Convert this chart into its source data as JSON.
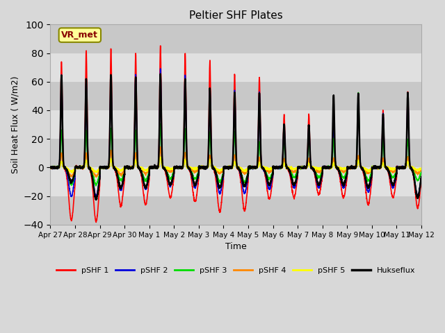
{
  "title": "Peltier SHF Plates",
  "xlabel": "Time",
  "ylabel": "Soil Heat Flux ( W/m2)",
  "ylim": [
    -40,
    100
  ],
  "xlim": [
    0,
    15
  ],
  "xtick_labels": [
    "Apr 27",
    "Apr 28",
    "Apr 29",
    "Apr 30",
    "May 1",
    "May 2",
    "May 3",
    "May 4",
    "May 5",
    "May 6",
    "May 7",
    "May 8",
    "May 9",
    "May 10",
    "May 11",
    "May 12"
  ],
  "ytick_values": [
    -40,
    -20,
    0,
    20,
    40,
    60,
    80,
    100
  ],
  "background_color": "#d8d8d8",
  "plot_bg_color": "#d8d8d8",
  "legend_entries": [
    "pSHF 1",
    "pSHF 2",
    "pSHF 3",
    "pSHF 4",
    "pSHF 5",
    "Hukseflux"
  ],
  "colors": {
    "pSHF1": "#ff0000",
    "pSHF2": "#0000dd",
    "pSHF3": "#00dd00",
    "pSHF4": "#ff8800",
    "pSHF5": "#ffff00",
    "Hukseflux": "#000000"
  },
  "annotation_text": "VR_met",
  "annotation_box_color": "#ffff99",
  "annotation_border_color": "#888800",
  "num_days": 15,
  "peaks_pSHF1": [
    74,
    82,
    83,
    80,
    85,
    80,
    75,
    65,
    63,
    37,
    37,
    38,
    50,
    40,
    53
  ],
  "peaks_pSHF2": [
    65,
    60,
    63,
    65,
    69,
    65,
    55,
    54,
    53,
    30,
    29,
    30,
    51,
    38,
    52
  ],
  "peaks_pSHF3": [
    26,
    26,
    27,
    26,
    30,
    27,
    25,
    25,
    18,
    19,
    20,
    20,
    52,
    19,
    20
  ],
  "peaks_pSHF4": [
    10,
    10,
    12,
    10,
    14,
    10,
    9,
    9,
    7,
    6,
    6,
    6,
    8,
    6,
    7
  ],
  "peaks_pSHF5": [
    4,
    5,
    6,
    5,
    7,
    5,
    5,
    4,
    3,
    3,
    3,
    3,
    5,
    3,
    4
  ],
  "peaks_Hukseflux": [
    65,
    62,
    65,
    63,
    65,
    62,
    55,
    52,
    52,
    30,
    30,
    50,
    52,
    37,
    52
  ],
  "troughs_pSHF1": [
    -37,
    -38,
    -27,
    -26,
    -21,
    -24,
    -31,
    -30,
    -22,
    -21,
    -19,
    -21,
    -26,
    -21,
    -28
  ],
  "troughs_pSHF2": [
    -20,
    -20,
    -16,
    -15,
    -13,
    -14,
    -18,
    -18,
    -15,
    -14,
    -14,
    -14,
    -17,
    -14,
    -20
  ],
  "troughs_pSHF3": [
    -12,
    -12,
    -9,
    -9,
    -8,
    -8,
    -10,
    -10,
    -8,
    -7,
    -7,
    -7,
    -9,
    -7,
    -9
  ],
  "troughs_pSHF4": [
    -6,
    -6,
    -5,
    -4,
    -3,
    -3,
    -4,
    -4,
    -3,
    -3,
    -3,
    -3,
    -4,
    -3,
    -4
  ],
  "troughs_pSHF5": [
    -3,
    -3,
    -2,
    -2,
    -1,
    -1,
    -2,
    -2,
    -1,
    -1,
    -1,
    -1,
    -2,
    -1,
    -2
  ],
  "troughs_Hukseflux": [
    -10,
    -22,
    -14,
    -14,
    -12,
    -12,
    -14,
    -13,
    -12,
    -12,
    -12,
    -12,
    -14,
    -12,
    -21
  ],
  "band_colors": [
    "#c8c8c8",
    "#e0e0e0"
  ]
}
